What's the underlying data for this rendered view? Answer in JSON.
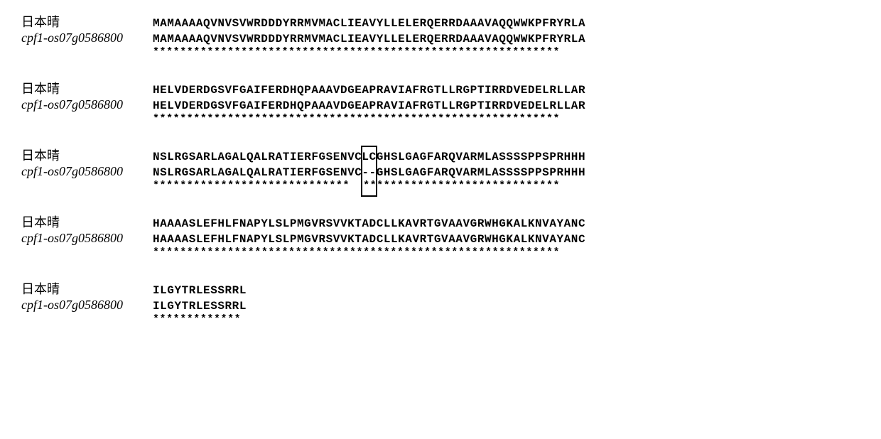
{
  "alignment": {
    "label_wildtype": "日本晴",
    "label_mutant": "cpf1-os07g0586800",
    "font_family_sequence": "Courier New",
    "font_family_label_cjk": "MS Mincho",
    "font_family_label_italic": "Times New Roman",
    "font_size_sequence": 16,
    "font_size_label": 18,
    "letter_spacing": 0.55,
    "background_color": "#ffffff",
    "text_color": "#000000",
    "box_border_color": "#000000",
    "box_border_width": 2,
    "blocks": [
      {
        "wt": "MAMAAAAQVNVSVWRDDDYRRMVMACLIEAVYLLELERQERRDAAAVAQQWWKPFRYRLA",
        "mut": "MAMAAAAQVNVSVWRDDDYRRMVMACLIEAVYLLELERQERRDAAAVAQQWWKPFRYRLA",
        "con": "************************************************************",
        "has_box": false
      },
      {
        "wt": "HELVDERDGSVFGAIFERDHQPAAAVDGEAPRAVIAFRGTLLRGPTIRRDVEDELRLLAR",
        "mut": "HELVDERDGSVFGAIFERDHQPAAAVDGEAPRAVIAFRGTLLRGPTIRRDVEDELRLLAR",
        "con": "************************************************************",
        "has_box": false
      },
      {
        "wt": "NSLRGSARLAGALQALRATIERFGSENVCLCGHSLGAGFARQVARMLASSSSPPSPRHHH",
        "mut": "NSLRGSARLAGALQALRATIERFGSENVC--GHSLGAGFARQVARMLASSSSPPSPRHHH",
        "con": "*****************************  *****************************",
        "has_box": true,
        "box_start_char": 29,
        "box_char_width": 2
      },
      {
        "wt": "HAAAASLEFHLFNAPYLSLPMGVRSVVKTADCLLKAVRTGVAAVGRWHGKALKNVAYANC",
        "mut": "HAAAASLEFHLFNAPYLSLPMGVRSVVKTADCLLKAVRTGVAAVGRWHGKALKNVAYANC",
        "con": "************************************************************",
        "has_box": false
      },
      {
        "wt": "ILGYTRLESSRRL",
        "mut": "ILGYTRLESSRRL",
        "con": "*************",
        "has_box": false
      }
    ]
  }
}
